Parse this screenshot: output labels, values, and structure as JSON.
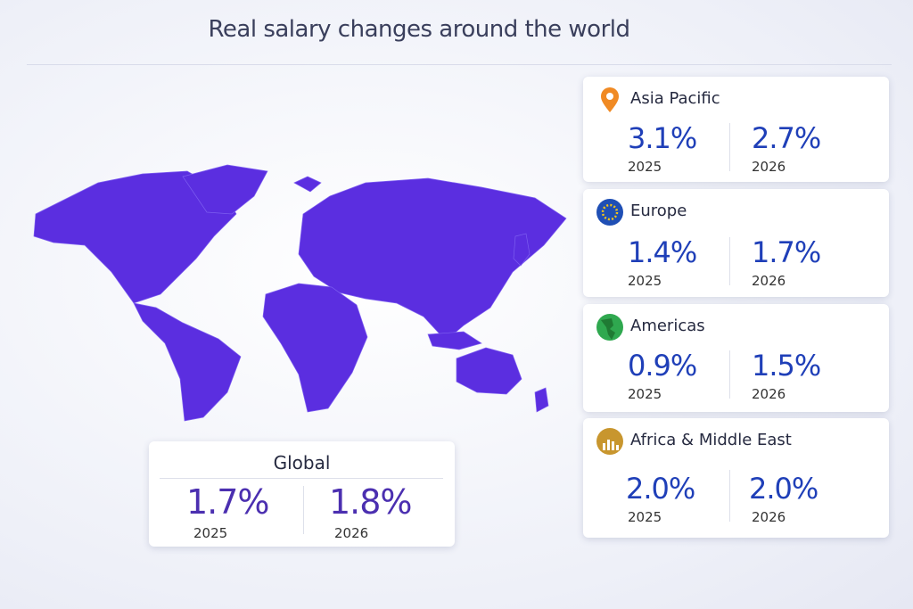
{
  "header": {
    "title": "Real salary changes around the world"
  },
  "regions": [
    {
      "name": "Asia Pacific",
      "values": [
        {
          "value": "3.1%",
          "year": "2025"
        },
        {
          "value": "2.7%",
          "year": "2026"
        }
      ]
    },
    {
      "name": "Europe",
      "values": [
        {
          "value": "1.4%",
          "year": "2025"
        },
        {
          "value": "1.7%",
          "year": "2026"
        }
      ]
    },
    {
      "name": "Americas",
      "values": [
        {
          "value": "0.9%",
          "year": "2025"
        },
        {
          "value": "1.5%",
          "year": "2026"
        }
      ]
    },
    {
      "name": "Africa & Middle East",
      "values": [
        {
          "value": "2.0%",
          "year": "2025"
        },
        {
          "value": "2.0%",
          "year": "2026"
        }
      ]
    }
  ],
  "global": {
    "name": "Global",
    "values": [
      {
        "value": "1.7%",
        "year": "2025"
      },
      {
        "value": "1.8%",
        "year": "2026"
      }
    ]
  }
}
